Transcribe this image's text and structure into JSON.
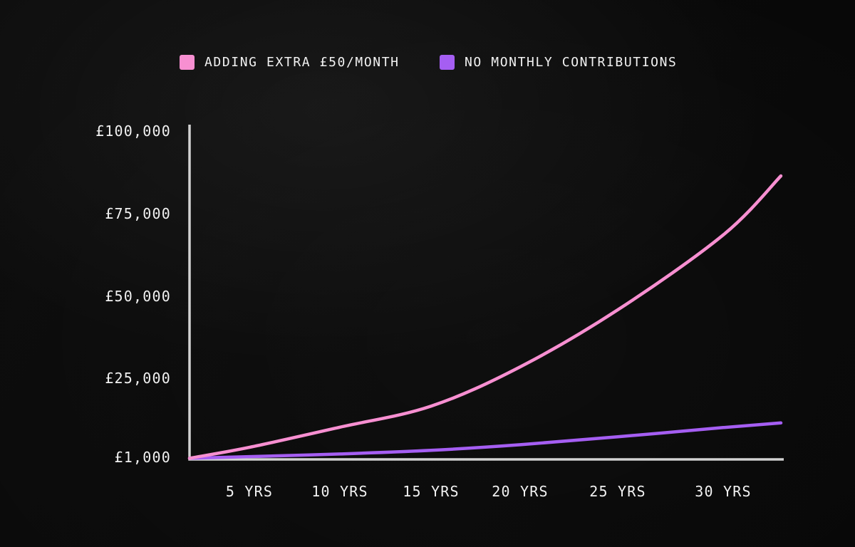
{
  "chart_data": {
    "type": "line",
    "title": "",
    "legend_position": "top",
    "grid": false,
    "axis_color": "#d2d2d2",
    "text_color": "#f1f1f1",
    "background_color": "#090909",
    "legend": [
      {
        "label": "ADDING EXTRA £50/MONTH",
        "color": "#f78fd1"
      },
      {
        "label": "NO MONTHLY CONTRIBUTIONS",
        "color": "#a55ef2"
      }
    ],
    "y_range": [
      0,
      100000
    ],
    "x_range_years": [
      0,
      33
    ],
    "y_ticks": [
      {
        "label": "£100,000",
        "value": 100000
      },
      {
        "label": "£75,000",
        "value": 75000
      },
      {
        "label": "£50,000",
        "value": 50000
      },
      {
        "label": "£25,000",
        "value": 25000
      },
      {
        "label": "£1,000",
        "value": 1000
      }
    ],
    "x_ticks": [
      {
        "label": "5 YRS",
        "year": 5
      },
      {
        "label": "10 YRS",
        "year": 10
      },
      {
        "label": "15 YRS",
        "year": 15
      },
      {
        "label": "20 YRS",
        "year": 20
      },
      {
        "label": "25 YRS",
        "year": 25
      },
      {
        "label": "30 YRS",
        "year": 30
      }
    ],
    "series": [
      {
        "name": "ADDING EXTRA £50/MONTH",
        "color": "#f78fd1",
        "points": [
          [
            0,
            1000
          ],
          [
            5,
            4300
          ],
          [
            10,
            10400
          ],
          [
            15,
            16800
          ],
          [
            20,
            28700
          ],
          [
            25,
            46000
          ],
          [
            30,
            68700
          ],
          [
            33,
            86600
          ]
        ]
      },
      {
        "name": "NO MONTHLY CONTRIBUTIONS",
        "color": "#a55ef2",
        "points": [
          [
            0,
            1000
          ],
          [
            5,
            1500
          ],
          [
            10,
            2300
          ],
          [
            15,
            3400
          ],
          [
            20,
            5100
          ],
          [
            25,
            7500
          ],
          [
            30,
            10300
          ],
          [
            33,
            11700
          ]
        ]
      }
    ]
  }
}
